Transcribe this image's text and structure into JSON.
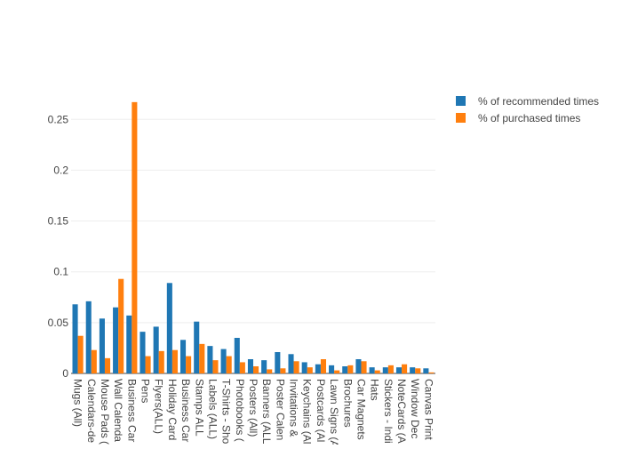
{
  "chart_data": {
    "type": "bar",
    "grid": true,
    "legend_position": "top-right",
    "ylim": [
      0,
      0.28
    ],
    "yticks": [
      0,
      0.05,
      0.1,
      0.15,
      0.2,
      0.25
    ],
    "ytick_labels": [
      "0",
      "0.05",
      "0.1",
      "0.15",
      "0.2",
      "0.25"
    ],
    "categories": [
      "Mugs (All)",
      "Calendars-de",
      "Mouse Pads (",
      "Wall Calenda",
      "Business Car",
      "Pens",
      "Flyers(ALL)",
      "Holiday Card",
      "Business Car",
      "Stamps ALL",
      "Labels (ALL)",
      "T-Shirts - Sho",
      "Photobooks (",
      "Posters (All)",
      "Banners (ALL",
      "Poster Calen",
      "Invitations &",
      "Keychains (Al",
      "Postcards (Al",
      "Lawn Signs (A",
      "Brochures",
      "Car Magnets",
      "Hats",
      "Stickers - Indi",
      "NoteCards (A",
      "Window Dec",
      "Canvas Print"
    ],
    "series": [
      {
        "name": "% of recommended times",
        "color": "#1f77b4",
        "values": [
          0.068,
          0.071,
          0.054,
          0.065,
          0.057,
          0.041,
          0.046,
          0.089,
          0.033,
          0.051,
          0.027,
          0.024,
          0.035,
          0.014,
          0.013,
          0.021,
          0.019,
          0.011,
          0.009,
          0.008,
          0.007,
          0.014,
          0.006,
          0.006,
          0.006,
          0.006,
          0.005
        ]
      },
      {
        "name": "% of purchased times",
        "color": "#ff7f0e",
        "values": [
          0.037,
          0.023,
          0.015,
          0.093,
          0.267,
          0.017,
          0.022,
          0.023,
          0.017,
          0.029,
          0.013,
          0.017,
          0.011,
          0.007,
          0.004,
          0.005,
          0.012,
          0.006,
          0.014,
          0.003,
          0.008,
          0.012,
          0.003,
          0.008,
          0.009,
          0.005,
          0.001
        ]
      }
    ]
  }
}
